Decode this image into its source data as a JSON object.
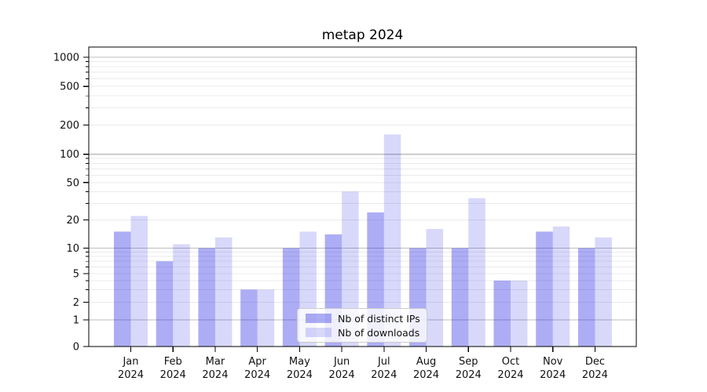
{
  "chart_data": {
    "type": "bar",
    "title": "metap 2024",
    "categories": [
      "Jan 2024",
      "Feb 2024",
      "Mar 2024",
      "Apr 2024",
      "May 2024",
      "Jun 2024",
      "Jul 2024",
      "Aug 2024",
      "Sep 2024",
      "Oct 2024",
      "Nov 2024",
      "Dec 2024"
    ],
    "series": [
      {
        "name": "Nb of distinct IPs",
        "fill": "rgba(40,40,230,0.38)",
        "color_hex": "#a8a8f4",
        "values": [
          15,
          7,
          10,
          3,
          10,
          14,
          24,
          10,
          10,
          4,
          15,
          10
        ]
      },
      {
        "name": "Nb of downloads",
        "fill": "rgba(40,40,230,0.18)",
        "color_hex": "#d8d8fa",
        "values": [
          22,
          11,
          13,
          3,
          15,
          40,
          160,
          16,
          34,
          4,
          17,
          13
        ]
      }
    ],
    "y_ticks": [
      0,
      1,
      2,
      5,
      10,
      20,
      50,
      100,
      200,
      500,
      1000
    ],
    "y_scale": "symlog",
    "ylim": [
      0,
      1200
    ],
    "xlabel": "",
    "ylabel": "",
    "grid": true,
    "grid_major_values": [
      1,
      10,
      100,
      1000
    ],
    "grid_major_color": "#bdbdbd",
    "grid_minor_color": "#ebebeb",
    "axis_color": "#000000",
    "legend_position": "lower center (inside plot)"
  }
}
